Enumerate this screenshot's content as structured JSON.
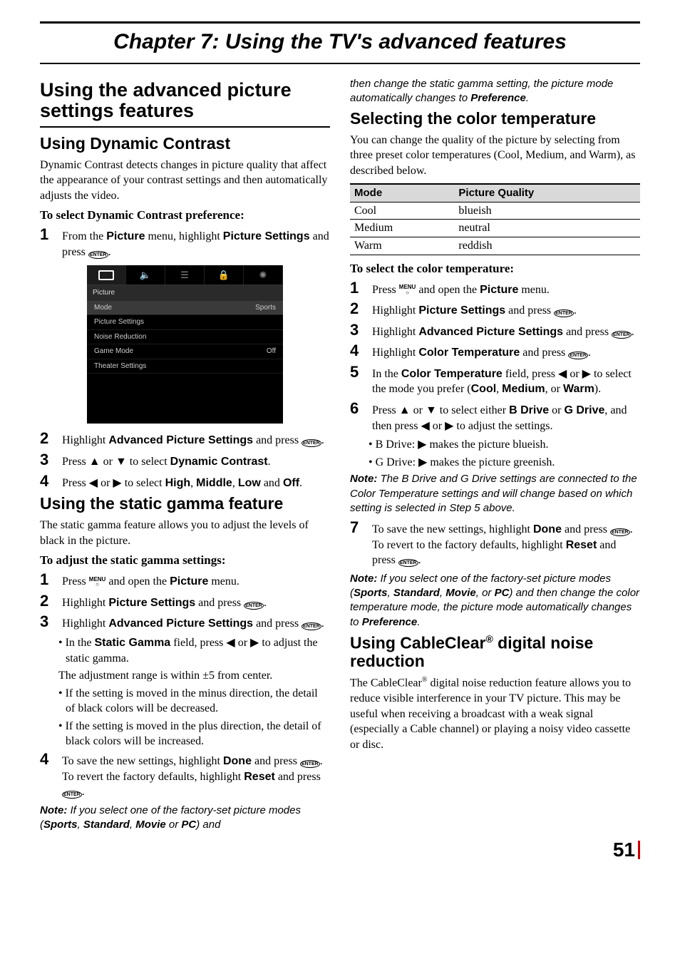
{
  "chapter": {
    "title": "Chapter 7: Using the TV's advanced features"
  },
  "left": {
    "h1": "Using the advanced picture settings features",
    "dyn": {
      "h2": "Using Dynamic Contrast",
      "intro": "Dynamic Contrast detects changes in picture quality that affect the appearance of your contrast settings and then automatically adjusts the video.",
      "toSelect": "To select Dynamic Contrast preference:",
      "s1a": "From the ",
      "s1b": "Picture",
      "s1c": " menu, highlight ",
      "s1d": "Picture Settings",
      "s1e": " and press ",
      "s2a": "Highlight ",
      "s2b": "Advanced Picture Settings",
      "s2c": " and press ",
      "s3a": "Press ",
      "s3b": " or ",
      "s3c": " to select ",
      "s3d": "Dynamic Contrast",
      "s3e": ".",
      "s4a": "Press ",
      "s4b": " or ",
      "s4c": " to select ",
      "s4d": "High",
      "s4e": ", ",
      "s4f": "Middle",
      "s4g": ", ",
      "s4h": "Low",
      "s4i": " and ",
      "s4j": "Off",
      "s4k": "."
    },
    "gamma": {
      "h2": "Using the static gamma feature",
      "intro": "The static gamma feature allows you to adjust the levels of black in the picture.",
      "toAdj": "To adjust the static gamma settings:",
      "s1a": "Press ",
      "s1b": " and open the ",
      "s1c": "Picture",
      "s1d": " menu.",
      "s2a": "Highlight ",
      "s2b": "Picture Settings",
      "s2c": " and press ",
      "s3a": "Highlight ",
      "s3b": "Advanced Picture Settings",
      "s3c": " and press ",
      "s3sub_a": "• In the ",
      "s3sub_b": "Static Gamma",
      "s3sub_c": " field, press ",
      "s3sub_d": " or ",
      "s3sub_e": " to adjust the static gamma.",
      "s3range": "The adjustment range is within ±5 from center.",
      "s3minus": "• If the setting is moved in the minus direction, the detail of black colors will be decreased.",
      "s3plus": "• If the setting is moved in the plus direction, the detail of black colors will be increased.",
      "s4a": "To save the new settings, highlight ",
      "s4b": "Done",
      "s4c": " and press ",
      "s4d": ". To revert the factory defaults, highlight ",
      "s4e": "Reset",
      "s4f": " and press "
    },
    "note1a": "Note:",
    "note1b": " If you select one of the factory-set picture modes (",
    "note1c": "Sports",
    "note1d": ", ",
    "note1e": "Standard",
    "note1f": ", ",
    "note1g": "Movie",
    "note1h": " or ",
    "note1i": "PC",
    "note1j": ") and "
  },
  "menu": {
    "section": "Picture",
    "rows": [
      {
        "label": "Mode",
        "val": "Sports"
      },
      {
        "label": "Picture Settings",
        "val": ""
      },
      {
        "label": "Noise Reduction",
        "val": ""
      },
      {
        "label": "Game Mode",
        "val": "Off"
      },
      {
        "label": "Theater Settings",
        "val": ""
      }
    ]
  },
  "right": {
    "noteContA": "then change the static gamma setting, the picture mode automatically changes to ",
    "noteContB": "Preference",
    "noteContC": ".",
    "ct": {
      "h2": "Selecting the color temperature",
      "intro": "You can change the quality of the picture by selecting from three preset color temperatures (Cool, Medium, and Warm), as described below.",
      "th1": "Mode",
      "th2": "Picture Quality",
      "rows": [
        {
          "mode": "Cool",
          "pq": "blueish"
        },
        {
          "mode": "Medium",
          "pq": "neutral"
        },
        {
          "mode": "Warm",
          "pq": "reddish"
        }
      ],
      "toSel": "To select the color temperature:",
      "s1a": "Press ",
      "s1b": " and open the ",
      "s1c": "Picture",
      "s1d": " menu.",
      "s2a": "Highlight ",
      "s2b": "Picture Settings",
      "s2c": " and press ",
      "s3a": "Highlight ",
      "s3b": "Advanced Picture Settings",
      "s3c": " and press ",
      "s4a": "Highlight ",
      "s4b": "Color Temperature",
      "s4c": " and press ",
      "s5a": "In the ",
      "s5b": "Color Temperature",
      "s5c": " field, press ",
      "s5d": " or ",
      "s5e": " to select the mode you prefer (",
      "s5f": "Cool",
      "s5g": ", ",
      "s5h": "Medium",
      "s5i": ", or ",
      "s5j": "Warm",
      "s5k": ").",
      "s6a": "Press ",
      "s6b": " or ",
      "s6c": " to select either ",
      "s6d": "B Drive",
      "s6e": " or ",
      "s6f": "G Drive",
      "s6g": ", and then press ",
      "s6h": " or ",
      "s6i": " to adjust the settings.",
      "s6bd": "• B Drive: ",
      "s6bd2": " makes the picture blueish.",
      "s6gd": "• G Drive: ",
      "s6gd2": " makes the picture greenish.",
      "note2a": "Note:",
      "note2b": " The B Drive and G Drive settings are connected to the Color Temperature settings and will change based on which setting is selected in Step 5 above.",
      "s7a": "To save the new settings, highlight ",
      "s7b": "Done",
      "s7c": " and press ",
      "s7d": "To revert to the factory defaults, highlight ",
      "s7e": "Reset",
      "s7f": " and press ",
      "note3a": "Note:",
      "note3b": " If you select one of the factory-set picture modes (",
      "note3c": "Sports",
      "note3d": ", ",
      "note3e": "Standard",
      "note3f": ", ",
      "note3g": "Movie",
      "note3h": ", or ",
      "note3i": "PC",
      "note3j": ") and then change the color temperature mode, the picture mode automatically changes to ",
      "note3k": "Preference",
      "note3l": "."
    },
    "cc": {
      "h2a": "Using CableClear",
      "h2b": "®",
      "h2c": " digital noise reduction",
      "p1a": "The CableClear",
      "p1b": "®",
      "p1c": " digital noise reduction feature allows you to reduce visible interference in your TV picture. This may be useful when receiving a broadcast with a weak signal (especially a Cable channel) or playing a noisy video cassette or disc."
    }
  },
  "icons": {
    "enter": "ENTER",
    "menu": "MENU",
    "up": "▲",
    "down": "▼",
    "left": "◀",
    "right": "▶",
    "speaker": "🔈",
    "sliders": "☰",
    "lock": "🔒",
    "gear": "✺"
  },
  "pageNum": "51"
}
